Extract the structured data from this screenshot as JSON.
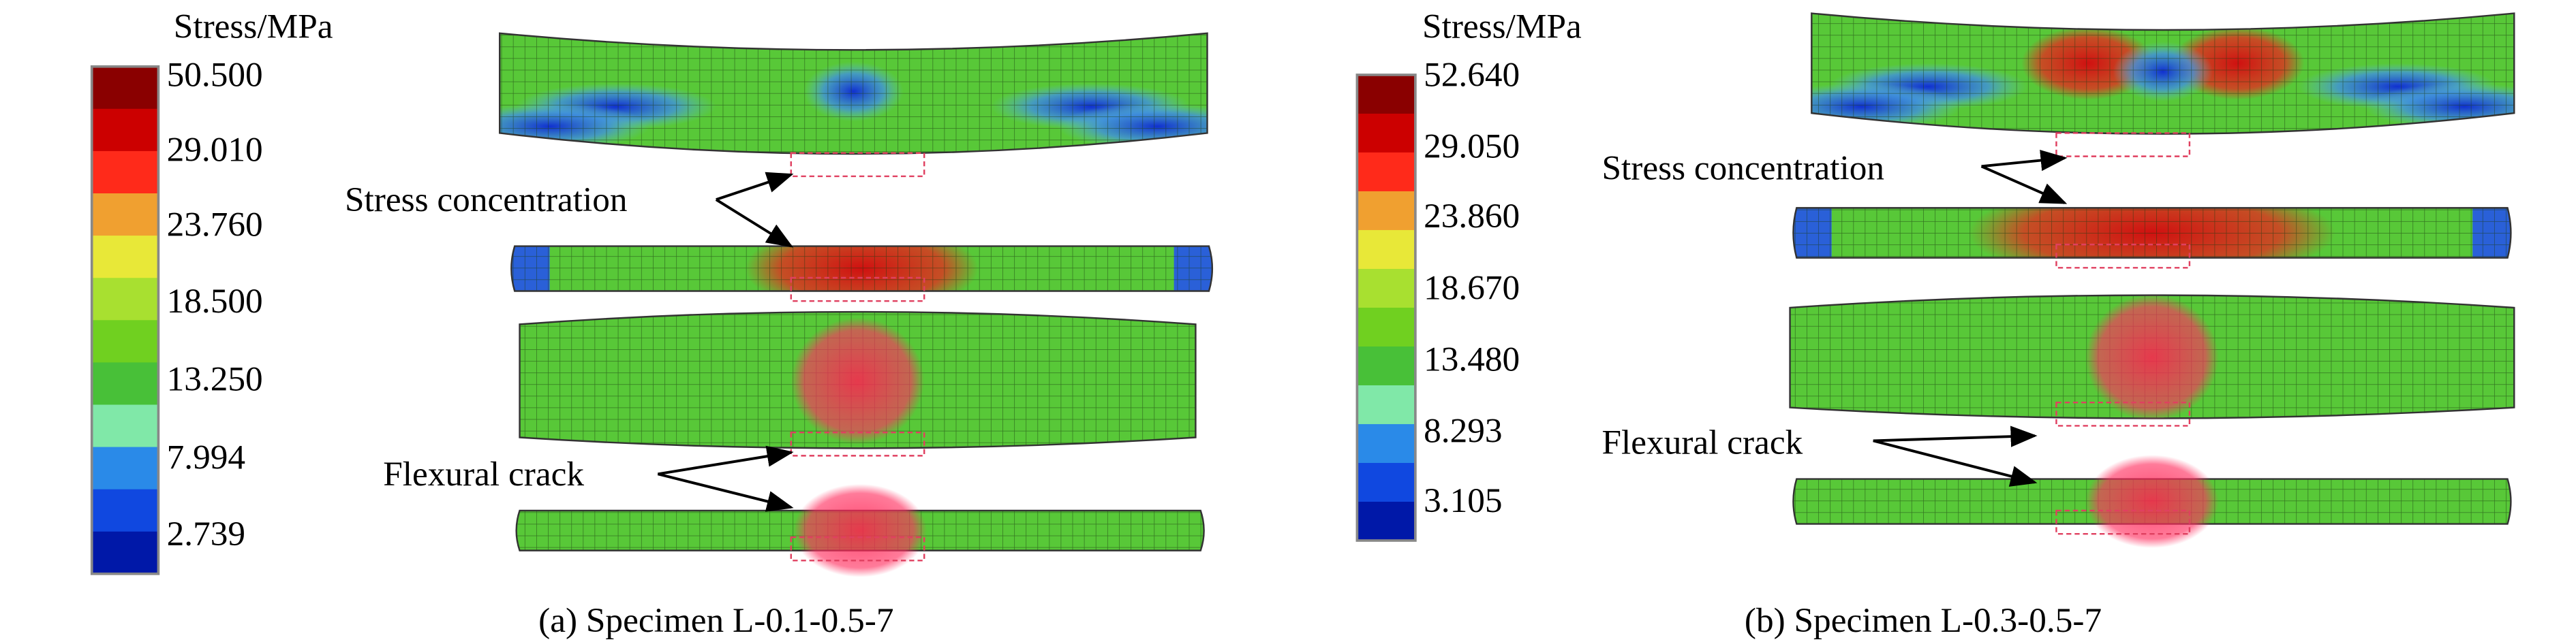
{
  "panels": [
    {
      "legend": {
        "title": "Stress/MPa",
        "labels": [
          "50.500",
          "29.010",
          "23.760",
          "18.500",
          "13.250",
          "7.994",
          "2.739"
        ]
      },
      "annotations": [
        "Stress concentration",
        "Flexural crack"
      ],
      "caption": "(a) Specimen L-0.1-0.5-7"
    },
    {
      "legend": {
        "title": "Stress/MPa",
        "labels": [
          "52.640",
          "29.050",
          "23.860",
          "18.670",
          "13.480",
          "8.293",
          "3.105"
        ]
      },
      "annotations": [
        "Stress concentration",
        "Flexural crack"
      ],
      "caption": "(b) Specimen L-0.3-0.5-7"
    }
  ]
}
